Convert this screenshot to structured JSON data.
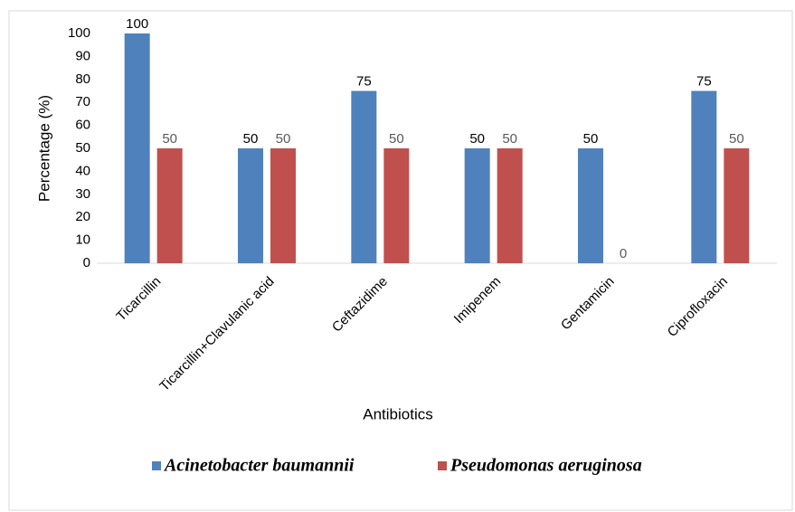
{
  "chart_data": {
    "type": "bar",
    "xlabel": "Antibiotics",
    "ylabel": "Percentage (%)",
    "categories": [
      "Ticarcillin",
      "Ticarcillin+Clavulanic acid",
      "Ceftazidime",
      "Imipenem",
      "Gentamicin",
      "Ciprofloxacin"
    ],
    "series": [
      {
        "name": "Acinetobacter baumannii",
        "color": "#4f81bd",
        "values": [
          100,
          50,
          75,
          50,
          50,
          75
        ]
      },
      {
        "name": "Pseudomonas aeruginosa",
        "color": "#c0504d",
        "values": [
          50,
          50,
          50,
          50,
          0,
          50
        ]
      }
    ],
    "ylim": [
      0,
      100
    ],
    "yticks": [
      0,
      10,
      20,
      30,
      40,
      50,
      60,
      70,
      80,
      90,
      100
    ],
    "legend": "bottom"
  }
}
